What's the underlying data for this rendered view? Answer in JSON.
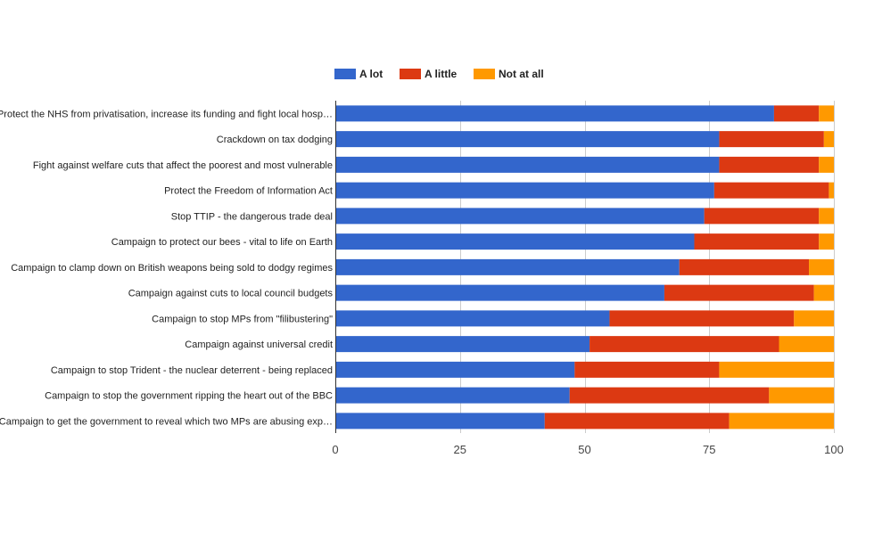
{
  "chart_data": {
    "type": "bar",
    "orientation": "horizontal",
    "stacked": true,
    "title": "",
    "xlabel": "",
    "ylabel": "",
    "xlim": [
      0,
      100
    ],
    "x_ticks": [
      0,
      25,
      50,
      75,
      100
    ],
    "grid": true,
    "legend_position": "top",
    "categories": [
      "Protect the NHS from privatisation, increase its funding and fight local hosp…",
      "Crackdown on tax dodging",
      "Fight against welfare cuts that affect the poorest and most vulnerable",
      "Protect the Freedom of Information Act",
      "Stop TTIP - the dangerous trade deal",
      "Campaign to protect our bees - vital to life on Earth",
      "Campaign to clamp down on British weapons being sold to dodgy regimes",
      "Campaign against cuts to local council budgets",
      "Campaign to stop MPs from \"filibustering\"",
      "Campaign against universal credit",
      "Campaign to stop Trident - the nuclear deterrent - being replaced",
      "Campaign to stop the government ripping the heart out of the BBC",
      "Campaign to get the government to reveal which two MPs are abusing exp…"
    ],
    "series": [
      {
        "name": "A lot",
        "color": "#3366cc",
        "values": [
          88,
          77,
          77,
          76,
          74,
          72,
          69,
          66,
          55,
          51,
          48,
          47,
          42
        ]
      },
      {
        "name": "A little",
        "color": "#dc3912",
        "values": [
          9,
          21,
          20,
          23,
          23,
          25,
          26,
          30,
          37,
          38,
          29,
          40,
          37
        ]
      },
      {
        "name": "Not at all",
        "color": "#ff9900",
        "values": [
          3,
          2,
          3,
          1,
          3,
          3,
          5,
          4,
          8,
          11,
          23,
          13,
          21
        ]
      }
    ]
  }
}
